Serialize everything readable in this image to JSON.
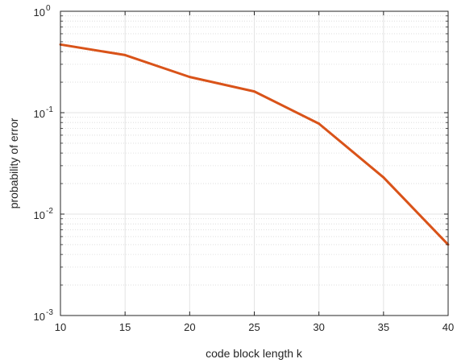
{
  "chart_data": {
    "type": "line",
    "title": "",
    "xlabel": "code block length k",
    "ylabel": "probability of error",
    "xlim": [
      10,
      40
    ],
    "ylim": [
      0.001,
      1
    ],
    "yscale": "log",
    "grid": true,
    "x_ticks": [
      "10",
      "15",
      "20",
      "25",
      "30",
      "35",
      "40"
    ],
    "y_ticks": [
      {
        "base": "10",
        "exp": "0"
      },
      {
        "base": "10",
        "exp": "-1"
      },
      {
        "base": "10",
        "exp": "-2"
      },
      {
        "base": "10",
        "exp": "-3"
      }
    ],
    "series": [
      {
        "color": "#d95319",
        "x": [
          10,
          15,
          20,
          25,
          30,
          35,
          40
        ],
        "y": [
          0.47,
          0.37,
          0.225,
          0.162,
          0.078,
          0.023,
          0.005
        ]
      }
    ]
  }
}
